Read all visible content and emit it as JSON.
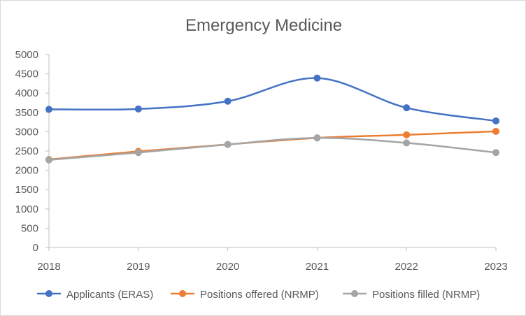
{
  "chart_data": {
    "type": "line",
    "title": "Emergency Medicine",
    "xlabel": "",
    "ylabel": "",
    "categories": [
      "2018",
      "2019",
      "2020",
      "2021",
      "2022",
      "2023"
    ],
    "ylim": [
      0,
      5000
    ],
    "yticks": [
      "0",
      "500",
      "1000",
      "1500",
      "2000",
      "2500",
      "3000",
      "3500",
      "4000",
      "4500",
      "5000"
    ],
    "grid": false,
    "legend_position": "bottom",
    "smooth": true,
    "series": [
      {
        "name": "Applicants (ERAS)",
        "color": "#4472c4",
        "values": [
          3580,
          3590,
          3790,
          4390,
          3620,
          3280
        ]
      },
      {
        "name": "Positions offered (NRMP)",
        "color": "#ed7d31",
        "values": [
          2280,
          2490,
          2670,
          2840,
          2920,
          3010
        ]
      },
      {
        "name": "Positions filled (NRMP)",
        "color": "#a5a5a5",
        "values": [
          2270,
          2460,
          2670,
          2840,
          2710,
          2460
        ]
      }
    ]
  }
}
